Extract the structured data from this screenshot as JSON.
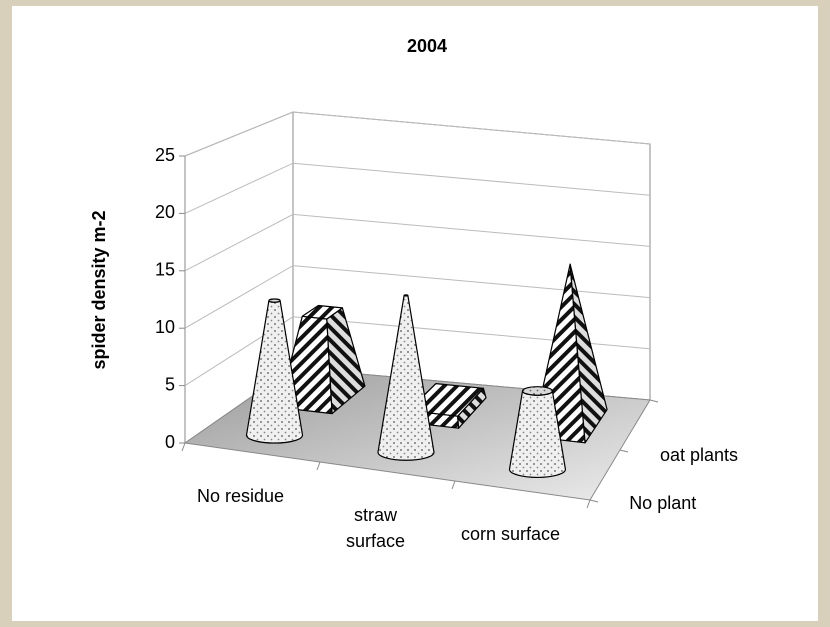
{
  "chart_data": {
    "type": "bar3d",
    "title": "2004",
    "y_label": "spider density m-2",
    "categories": [
      "No residue",
      "straw surface",
      "corn surface"
    ],
    "series": [
      {
        "name": "No plant",
        "color": "#eeeeee",
        "shape": "cone",
        "values": [
          12,
          14,
          7
        ]
      },
      {
        "name": "oat plants",
        "color": "#ffffff",
        "shape": "pyramid",
        "values": [
          8,
          1,
          15
        ]
      }
    ],
    "ylim": [
      0,
      25
    ],
    "yticks": [
      0,
      5,
      10,
      15,
      20,
      25
    ],
    "grid": true
  }
}
